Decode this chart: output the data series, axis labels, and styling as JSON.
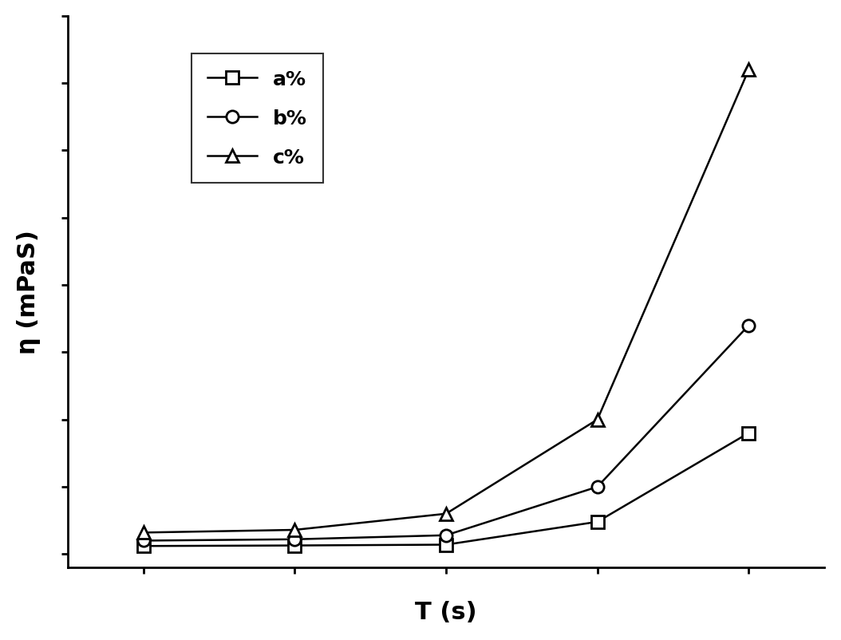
{
  "series": [
    {
      "label": "a%",
      "marker": "s",
      "x": [
        1,
        2,
        3,
        4,
        5
      ],
      "y": [
        0.3,
        0.32,
        0.35,
        1.2,
        4.5
      ]
    },
    {
      "label": "b%",
      "marker": "o",
      "x": [
        1,
        2,
        3,
        4,
        5
      ],
      "y": [
        0.5,
        0.55,
        0.7,
        2.5,
        8.5
      ]
    },
    {
      "label": "c%",
      "marker": "^",
      "x": [
        1,
        2,
        3,
        4,
        5
      ],
      "y": [
        0.8,
        0.9,
        1.5,
        5.0,
        18.0
      ]
    }
  ],
  "xlabel": "T (s)",
  "ylabel": "η (mPaS)",
  "xlabel_fontsize": 22,
  "ylabel_fontsize": 22,
  "legend_fontsize": 18,
  "line_color": "#000000",
  "marker_size": 11,
  "line_width": 1.8,
  "background_color": "#ffffff",
  "ylim": [
    -0.5,
    20
  ],
  "xlim": [
    0.5,
    5.5
  ]
}
